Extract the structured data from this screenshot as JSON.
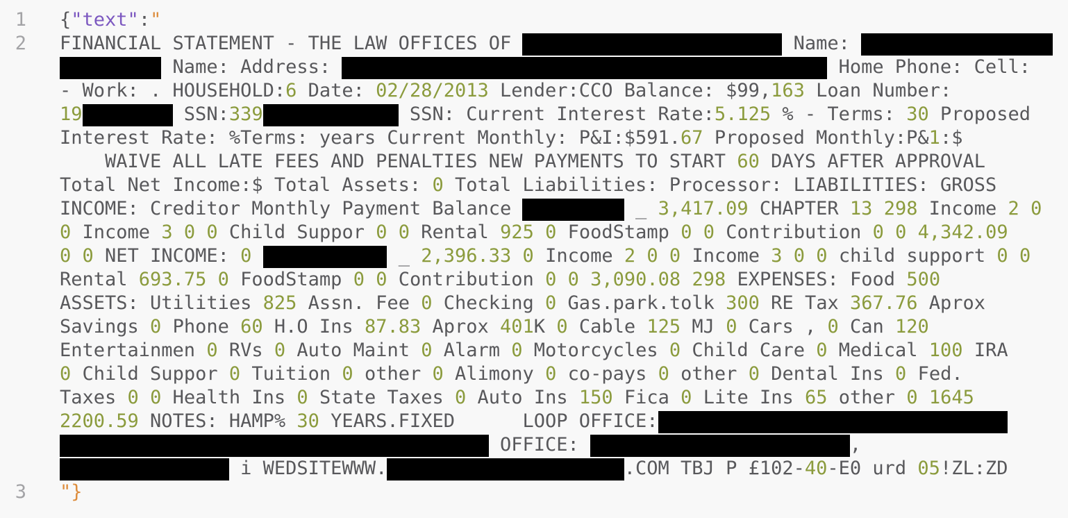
{
  "editor": {
    "description": "Plain-text JSON viewer showing an OCR'd financial statement string with redacted regions",
    "colors": {
      "background": "#f8f8f8",
      "default_text": "#58585b",
      "line_number": "#a3a3a6",
      "number_token": "#8b9b3d",
      "string_token": "#7c58c0",
      "quote_token": "#dd8c3c",
      "redaction": "#000000"
    },
    "rows": [
      {
        "num": "1",
        "segments": [
          {
            "t": "{",
            "c": "d"
          },
          {
            "t": "\"text\"",
            "c": "s"
          },
          {
            "t": ":",
            "c": "d"
          },
          {
            "t": "\"",
            "c": "q"
          }
        ]
      },
      {
        "num": "2",
        "segments": [
          {
            "t": "FINANCIAL STATEMENT - THE LAW OFFICES OF ",
            "c": "d"
          },
          {
            "r": 23
          },
          {
            "t": " Name: ",
            "c": "d"
          },
          {
            "r": 17
          }
        ]
      },
      {
        "num": "",
        "segments": [
          {
            "r": 9
          },
          {
            "t": " Name: Address: ",
            "c": "d"
          },
          {
            "r": 43
          },
          {
            "t": " Home Phone: Cell:",
            "c": "d"
          }
        ]
      },
      {
        "num": "",
        "segments": [
          {
            "t": "- Work: . HOUSEHOLD:",
            "c": "d"
          },
          {
            "t": "6",
            "c": "n"
          },
          {
            "t": " Date: ",
            "c": "d"
          },
          {
            "t": "02/28/2013",
            "c": "n"
          },
          {
            "t": " Lender:CCO Balance: $99,",
            "c": "d"
          },
          {
            "t": "163",
            "c": "n"
          },
          {
            "t": " Loan Number:",
            "c": "d"
          }
        ]
      },
      {
        "num": "",
        "segments": [
          {
            "t": "19",
            "c": "n"
          },
          {
            "r": 8
          },
          {
            "t": " SSN:",
            "c": "d"
          },
          {
            "t": "339",
            "c": "n"
          },
          {
            "r": 12
          },
          {
            "t": " SSN: Current Interest Rate:",
            "c": "d"
          },
          {
            "t": "5.125",
            "c": "n"
          },
          {
            "t": " % - Terms: ",
            "c": "d"
          },
          {
            "t": "30",
            "c": "n"
          },
          {
            "t": " Proposed",
            "c": "d"
          }
        ]
      },
      {
        "num": "",
        "segments": [
          {
            "t": "Interest Rate: %Terms: years Current Monthly: P&I:$591.",
            "c": "d"
          },
          {
            "t": "67",
            "c": "n"
          },
          {
            "t": " Proposed Monthly:P&",
            "c": "d"
          },
          {
            "t": "1",
            "c": "n"
          },
          {
            "t": ":$",
            "c": "d"
          }
        ]
      },
      {
        "num": "",
        "segments": [
          {
            "t": "    WAIVE ALL LATE FEES AND PENALTIES NEW PAYMENTS TO START ",
            "c": "d"
          },
          {
            "t": "60",
            "c": "n"
          },
          {
            "t": " DAYS AFTER APPROVAL",
            "c": "d"
          }
        ]
      },
      {
        "num": "",
        "segments": [
          {
            "t": "Total Net Income:$ Total Assets: ",
            "c": "d"
          },
          {
            "t": "0",
            "c": "n"
          },
          {
            "t": " Total Liabilities: Processor: LIABILITIES: GROSS",
            "c": "d"
          }
        ]
      },
      {
        "num": "",
        "segments": [
          {
            "t": "INCOME: Creditor Monthly Payment Balance ",
            "c": "d"
          },
          {
            "r": 9
          },
          {
            "t": " _ ",
            "c": "d"
          },
          {
            "t": "3,417.09",
            "c": "n"
          },
          {
            "t": " CHAPTER ",
            "c": "d"
          },
          {
            "t": "13",
            "c": "n"
          },
          {
            "t": " ",
            "c": "d"
          },
          {
            "t": "298",
            "c": "n"
          },
          {
            "t": " Income ",
            "c": "d"
          },
          {
            "t": "2",
            "c": "n"
          },
          {
            "t": " ",
            "c": "d"
          },
          {
            "t": "0",
            "c": "n"
          }
        ]
      },
      {
        "num": "",
        "segments": [
          {
            "t": "0",
            "c": "n"
          },
          {
            "t": " Income ",
            "c": "d"
          },
          {
            "t": "3",
            "c": "n"
          },
          {
            "t": " ",
            "c": "d"
          },
          {
            "t": "0",
            "c": "n"
          },
          {
            "t": " ",
            "c": "d"
          },
          {
            "t": "0",
            "c": "n"
          },
          {
            "t": " Child Suppor ",
            "c": "d"
          },
          {
            "t": "0",
            "c": "n"
          },
          {
            "t": " ",
            "c": "d"
          },
          {
            "t": "0",
            "c": "n"
          },
          {
            "t": " Rental ",
            "c": "d"
          },
          {
            "t": "925",
            "c": "n"
          },
          {
            "t": " ",
            "c": "d"
          },
          {
            "t": "0",
            "c": "n"
          },
          {
            "t": " FoodStamp ",
            "c": "d"
          },
          {
            "t": "0",
            "c": "n"
          },
          {
            "t": " ",
            "c": "d"
          },
          {
            "t": "0",
            "c": "n"
          },
          {
            "t": " Contribution ",
            "c": "d"
          },
          {
            "t": "0",
            "c": "n"
          },
          {
            "t": " ",
            "c": "d"
          },
          {
            "t": "0",
            "c": "n"
          },
          {
            "t": " ",
            "c": "d"
          },
          {
            "t": "4,342.09",
            "c": "n"
          }
        ]
      },
      {
        "num": "",
        "segments": [
          {
            "t": "0",
            "c": "n"
          },
          {
            "t": " ",
            "c": "d"
          },
          {
            "t": "0",
            "c": "n"
          },
          {
            "t": " NET INCOME: ",
            "c": "d"
          },
          {
            "t": "0",
            "c": "n"
          },
          {
            "t": " ",
            "c": "d"
          },
          {
            "r": 11
          },
          {
            "t": " _ ",
            "c": "d"
          },
          {
            "t": "2,396.33",
            "c": "n"
          },
          {
            "t": " ",
            "c": "d"
          },
          {
            "t": "0",
            "c": "n"
          },
          {
            "t": " Income ",
            "c": "d"
          },
          {
            "t": "2",
            "c": "n"
          },
          {
            "t": " ",
            "c": "d"
          },
          {
            "t": "0",
            "c": "n"
          },
          {
            "t": " ",
            "c": "d"
          },
          {
            "t": "0",
            "c": "n"
          },
          {
            "t": " Income ",
            "c": "d"
          },
          {
            "t": "3",
            "c": "n"
          },
          {
            "t": " ",
            "c": "d"
          },
          {
            "t": "0",
            "c": "n"
          },
          {
            "t": " ",
            "c": "d"
          },
          {
            "t": "0",
            "c": "n"
          },
          {
            "t": " child support ",
            "c": "d"
          },
          {
            "t": "0",
            "c": "n"
          },
          {
            "t": " ",
            "c": "d"
          },
          {
            "t": "0",
            "c": "n"
          }
        ]
      },
      {
        "num": "",
        "segments": [
          {
            "t": "Rental ",
            "c": "d"
          },
          {
            "t": "693.75",
            "c": "n"
          },
          {
            "t": " ",
            "c": "d"
          },
          {
            "t": "0",
            "c": "n"
          },
          {
            "t": " FoodStamp ",
            "c": "d"
          },
          {
            "t": "0",
            "c": "n"
          },
          {
            "t": " ",
            "c": "d"
          },
          {
            "t": "0",
            "c": "n"
          },
          {
            "t": " Contribution ",
            "c": "d"
          },
          {
            "t": "0",
            "c": "n"
          },
          {
            "t": " ",
            "c": "d"
          },
          {
            "t": "0",
            "c": "n"
          },
          {
            "t": " ",
            "c": "d"
          },
          {
            "t": "3,090.08",
            "c": "n"
          },
          {
            "t": " ",
            "c": "d"
          },
          {
            "t": "298",
            "c": "n"
          },
          {
            "t": " EXPENSES: Food ",
            "c": "d"
          },
          {
            "t": "500",
            "c": "n"
          }
        ]
      },
      {
        "num": "",
        "segments": [
          {
            "t": "ASSETS: Utilities ",
            "c": "d"
          },
          {
            "t": "825",
            "c": "n"
          },
          {
            "t": " Assn. Fee ",
            "c": "d"
          },
          {
            "t": "0",
            "c": "n"
          },
          {
            "t": " Checking ",
            "c": "d"
          },
          {
            "t": "0",
            "c": "n"
          },
          {
            "t": " Gas.park.tolk ",
            "c": "d"
          },
          {
            "t": "300",
            "c": "n"
          },
          {
            "t": " RE Tax ",
            "c": "d"
          },
          {
            "t": "367.76",
            "c": "n"
          },
          {
            "t": " Aprox",
            "c": "d"
          }
        ]
      },
      {
        "num": "",
        "segments": [
          {
            "t": "Savings ",
            "c": "d"
          },
          {
            "t": "0",
            "c": "n"
          },
          {
            "t": " Phone ",
            "c": "d"
          },
          {
            "t": "60",
            "c": "n"
          },
          {
            "t": " H.O Ins ",
            "c": "d"
          },
          {
            "t": "87.83",
            "c": "n"
          },
          {
            "t": " Aprox ",
            "c": "d"
          },
          {
            "t": "401",
            "c": "n"
          },
          {
            "t": "K ",
            "c": "d"
          },
          {
            "t": "0",
            "c": "n"
          },
          {
            "t": " Cable ",
            "c": "d"
          },
          {
            "t": "125",
            "c": "n"
          },
          {
            "t": " MJ ",
            "c": "d"
          },
          {
            "t": "0",
            "c": "n"
          },
          {
            "t": " Cars , ",
            "c": "d"
          },
          {
            "t": "0",
            "c": "n"
          },
          {
            "t": " Can ",
            "c": "d"
          },
          {
            "t": "120",
            "c": "n"
          }
        ]
      },
      {
        "num": "",
        "segments": [
          {
            "t": "Entertainmen ",
            "c": "d"
          },
          {
            "t": "0",
            "c": "n"
          },
          {
            "t": " RVs ",
            "c": "d"
          },
          {
            "t": "0",
            "c": "n"
          },
          {
            "t": " Auto Maint ",
            "c": "d"
          },
          {
            "t": "0",
            "c": "n"
          },
          {
            "t": " Alarm ",
            "c": "d"
          },
          {
            "t": "0",
            "c": "n"
          },
          {
            "t": " Motorcycles ",
            "c": "d"
          },
          {
            "t": "0",
            "c": "n"
          },
          {
            "t": " Child Care ",
            "c": "d"
          },
          {
            "t": "0",
            "c": "n"
          },
          {
            "t": " Medical ",
            "c": "d"
          },
          {
            "t": "100",
            "c": "n"
          },
          {
            "t": " IRA",
            "c": "d"
          }
        ]
      },
      {
        "num": "",
        "segments": [
          {
            "t": "0",
            "c": "n"
          },
          {
            "t": " Child Suppor ",
            "c": "d"
          },
          {
            "t": "0",
            "c": "n"
          },
          {
            "t": " Tuition ",
            "c": "d"
          },
          {
            "t": "0",
            "c": "n"
          },
          {
            "t": " other ",
            "c": "d"
          },
          {
            "t": "0",
            "c": "n"
          },
          {
            "t": " Alimony ",
            "c": "d"
          },
          {
            "t": "0",
            "c": "n"
          },
          {
            "t": " co-pays ",
            "c": "d"
          },
          {
            "t": "0",
            "c": "n"
          },
          {
            "t": " other ",
            "c": "d"
          },
          {
            "t": "0",
            "c": "n"
          },
          {
            "t": " Dental Ins ",
            "c": "d"
          },
          {
            "t": "0",
            "c": "n"
          },
          {
            "t": " Fed.",
            "c": "d"
          }
        ]
      },
      {
        "num": "",
        "segments": [
          {
            "t": "Taxes ",
            "c": "d"
          },
          {
            "t": "0",
            "c": "n"
          },
          {
            "t": " ",
            "c": "d"
          },
          {
            "t": "0",
            "c": "n"
          },
          {
            "t": " Health Ins ",
            "c": "d"
          },
          {
            "t": "0",
            "c": "n"
          },
          {
            "t": " State Taxes ",
            "c": "d"
          },
          {
            "t": "0",
            "c": "n"
          },
          {
            "t": " Auto Ins ",
            "c": "d"
          },
          {
            "t": "150",
            "c": "n"
          },
          {
            "t": " Fica ",
            "c": "d"
          },
          {
            "t": "0",
            "c": "n"
          },
          {
            "t": " Lite Ins ",
            "c": "d"
          },
          {
            "t": "65",
            "c": "n"
          },
          {
            "t": " other ",
            "c": "d"
          },
          {
            "t": "0",
            "c": "n"
          },
          {
            "t": " ",
            "c": "d"
          },
          {
            "t": "1645",
            "c": "n"
          }
        ]
      },
      {
        "num": "",
        "segments": [
          {
            "t": "2200.59",
            "c": "n"
          },
          {
            "t": " NOTES: HAMP% ",
            "c": "d"
          },
          {
            "t": "30",
            "c": "n"
          },
          {
            "t": " YEARS.FIXED      LOOP OFFICE:",
            "c": "d"
          },
          {
            "r": 31
          }
        ]
      },
      {
        "num": "",
        "segments": [
          {
            "r": 38
          },
          {
            "t": " OFFICE: ",
            "c": "d"
          },
          {
            "r": 23
          },
          {
            "t": ",",
            "c": "d"
          }
        ]
      },
      {
        "num": "",
        "segments": [
          {
            "r": 15
          },
          {
            "t": " i WEDSITEWWW.",
            "c": "d"
          },
          {
            "r": 21
          },
          {
            "t": ".COM TBJ P £102-",
            "c": "d"
          },
          {
            "t": "40",
            "c": "n"
          },
          {
            "t": "-E0 urd ",
            "c": "d"
          },
          {
            "t": "05",
            "c": "n"
          },
          {
            "t": "!ZL:ZD",
            "c": "d"
          }
        ]
      },
      {
        "num": "3",
        "segments": [
          {
            "t": "\"}",
            "c": "q"
          }
        ]
      }
    ]
  }
}
